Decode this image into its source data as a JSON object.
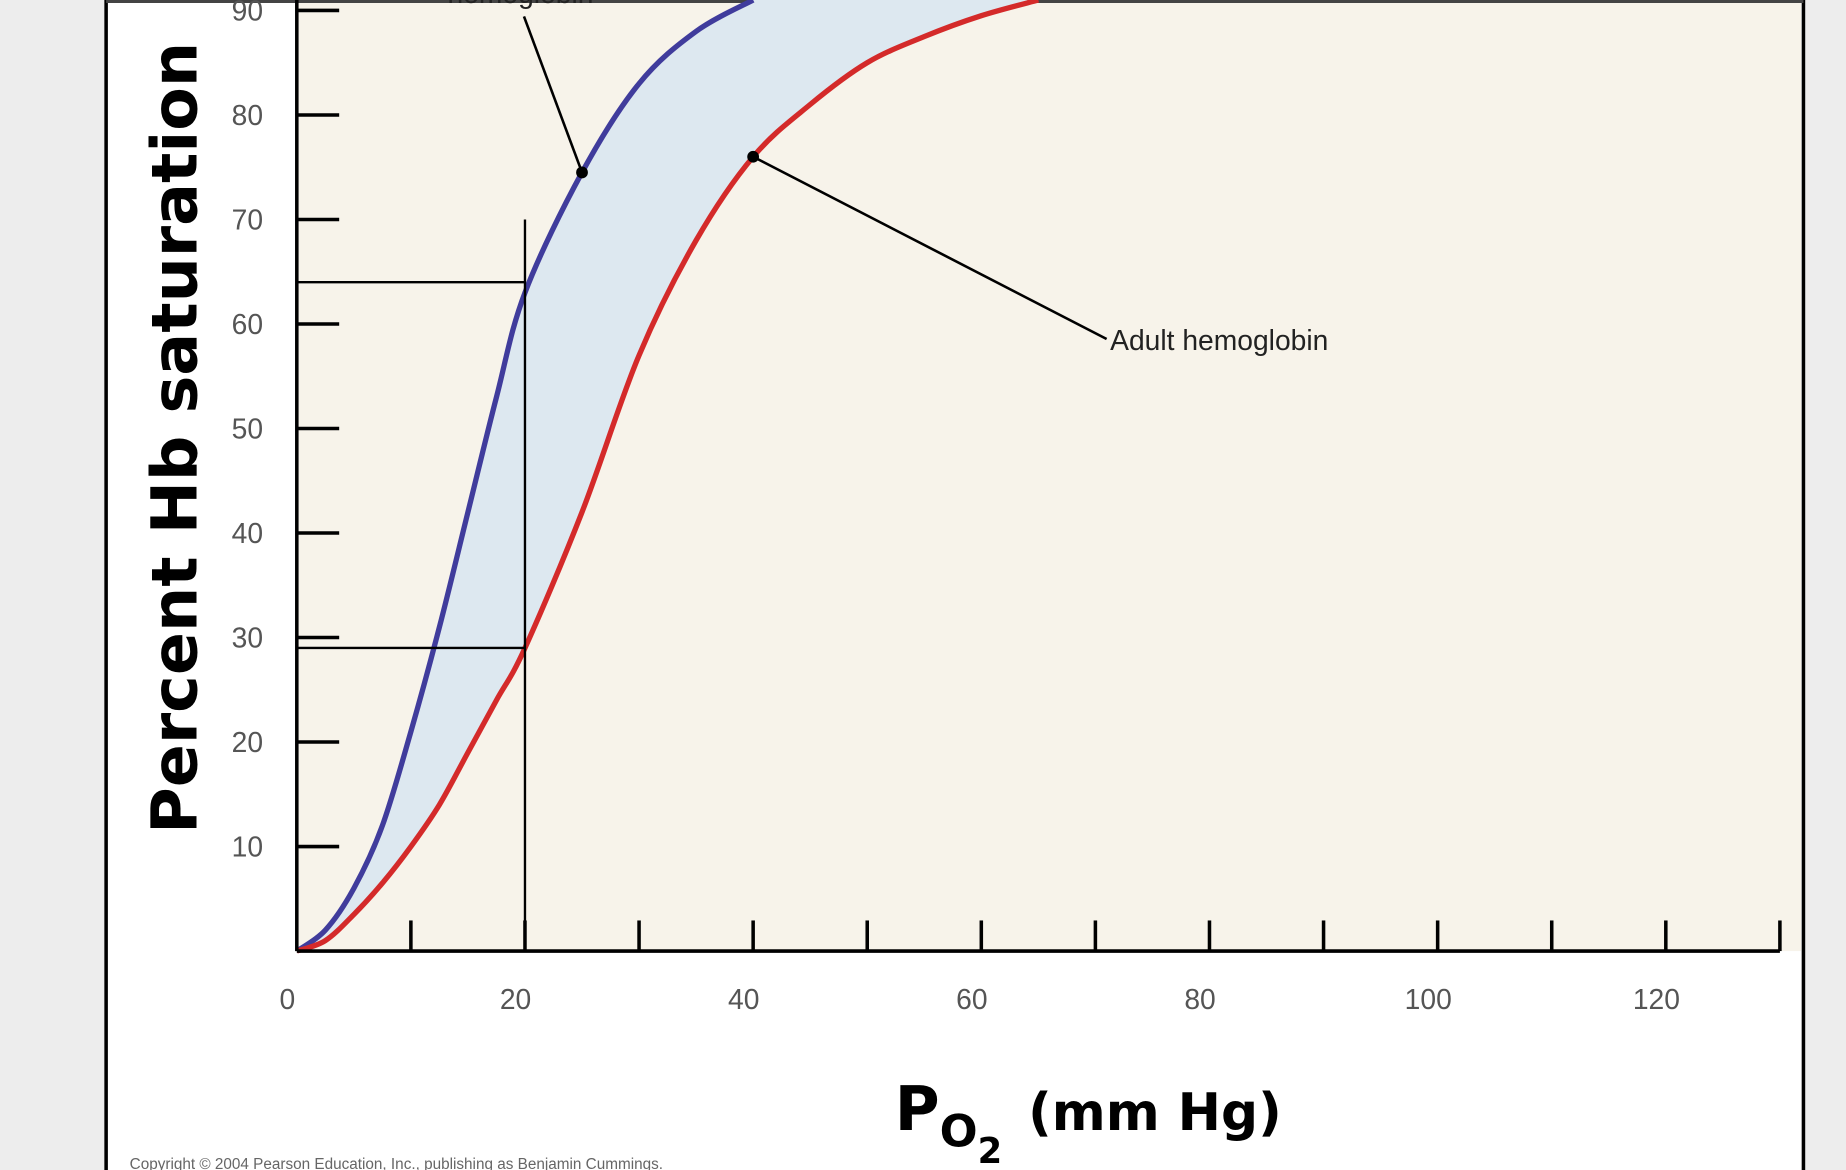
{
  "chart_data": {
    "type": "line",
    "ylabel": "Percent Hb saturation",
    "xlabel": {
      "main": "P",
      "sub": "O",
      "subsub": "2",
      "unit": "(mm Hg)"
    },
    "x": [
      0,
      2.5,
      5,
      7.5,
      10,
      12.5,
      15,
      17.5,
      20,
      25,
      30,
      35,
      40,
      45,
      50,
      55,
      60,
      65
    ],
    "series": [
      {
        "name": "hemoglobin",
        "color": "#403c9c",
        "values": [
          0,
          2,
          6,
          12,
          21,
          31,
          42,
          53,
          63,
          74.5,
          83,
          88,
          91,
          null,
          null,
          null,
          null,
          null
        ]
      },
      {
        "name": "Adult hemoglobin",
        "color": "#d42a2a",
        "values": [
          0,
          1,
          3.5,
          6.5,
          10,
          14,
          19,
          24,
          29,
          42,
          57,
          68,
          76,
          81,
          85,
          87.5,
          89.5,
          91
        ]
      }
    ],
    "xlim": [
      0,
      130
    ],
    "ylim": [
      0,
      91
    ],
    "xticks": [
      0,
      20,
      40,
      60,
      80,
      100,
      120
    ],
    "xtick_marks": [
      10,
      20,
      30,
      40,
      50,
      60,
      70,
      80,
      90,
      100,
      110,
      120,
      130
    ],
    "yticks": [
      10,
      20,
      30,
      40,
      50,
      60,
      70,
      80,
      90
    ],
    "annotations": [
      {
        "text": "hemoglobin",
        "x": 25,
        "y": 74.5
      },
      {
        "text": "Adult hemoglobin",
        "x": 40,
        "y": 76
      }
    ],
    "reference_lines": {
      "vertical": {
        "x": 20,
        "y": 70
      },
      "horizontal": [
        {
          "y": 64,
          "x": 20
        },
        {
          "y": 29,
          "x": 20
        }
      ]
    },
    "fill_between_color": "#dde8f0",
    "plot_background": "#f7f3ea",
    "copyright": "Copyright © 2004 Pearson Education, Inc., publishing as Benjamin Cummings."
  }
}
